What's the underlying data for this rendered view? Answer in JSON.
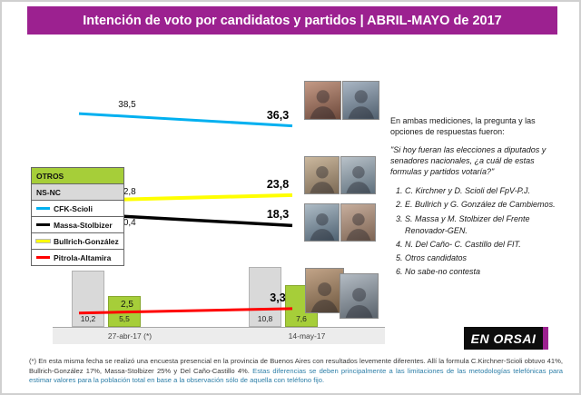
{
  "header": {
    "title": "Intención de voto por candidatos y partidos | ABRIL-MAYO de 2017"
  },
  "chart_data": {
    "type": "line+bar",
    "title": "Intención de voto por candidatos y partidos | ABRIL-MAYO de 2017",
    "categories": [
      "27-abr-17 (*)",
      "14-may-17"
    ],
    "line_series": [
      {
        "name": "CFK-Scioli",
        "color": "#00b0f0",
        "values": [
          38.5,
          36.3
        ],
        "labels": [
          "38,5",
          "36,3"
        ]
      },
      {
        "name": "Bullrich-González",
        "color": "#ffff00",
        "values": [
          22.8,
          23.8
        ],
        "labels": [
          "22,8",
          "23,8"
        ]
      },
      {
        "name": "Massa-Stolbizer",
        "color": "#000000",
        "values": [
          20.4,
          18.3
        ],
        "labels": [
          "20,4",
          "18,3"
        ]
      },
      {
        "name": "Pitrola-Altamira",
        "color": "#ff0000",
        "values": [
          2.5,
          3.3
        ],
        "labels": [
          "2,5",
          "3,3"
        ]
      }
    ],
    "bar_series": [
      {
        "name": "NS-NC",
        "color": "#d9d9d9",
        "values": [
          10.2,
          10.8
        ],
        "labels": [
          "10,2",
          "10,8"
        ]
      },
      {
        "name": "OTROS",
        "color": "#a6ce39",
        "values": [
          5.5,
          7.6
        ],
        "labels": [
          "5,5",
          "7,6"
        ]
      }
    ],
    "ylim": [
      0,
      45
    ],
    "grid": false,
    "legend_position": "left"
  },
  "legend": {
    "items": [
      {
        "label": "OTROS",
        "swatch": "#a6ce39",
        "type": "fill"
      },
      {
        "label": "NS-NC",
        "swatch": "#d9d9d9",
        "type": "fill"
      },
      {
        "label": "CFK-Scioli",
        "swatch": "#00b0f0",
        "type": "line"
      },
      {
        "label": "Massa-Stolbizer",
        "swatch": "#000000",
        "type": "line"
      },
      {
        "label": "Bullrich-González",
        "swatch": "#ffff00",
        "type": "line"
      },
      {
        "label": "Pitrola-Altamira",
        "swatch": "#ff0000",
        "type": "line"
      }
    ]
  },
  "panel": {
    "intro": "En ambas mediciones, la pregunta y las opciones de respuestas fueron:",
    "question": "\"Si hoy fueran las elecciones a diputados y senadores nacionales, ¿a cuál de estas formulas y partidos votaría?\"",
    "options": [
      "C. Kirchner y D. Scioli del FpV-P.J.",
      "E. Bullrich y G. González de Cambiemos.",
      "S. Massa y M. Stolbizer del Frente Renovador-GEN.",
      "N. Del Caño- C. Castillo del FIT.",
      "Otros candidatos",
      "No sabe-no contesta"
    ]
  },
  "logo": {
    "text": "EN ORSAI"
  },
  "footnote": {
    "plain": "(*) En esta misma fecha se realizó una encuesta presencial en la provincia de Buenos Aires con resultados levemente diferentes. Allí la formula C.Kirchner-Scioli obtuvo 41%, Bullrich-González 17%, Massa-Stolbizer 25% y Del Caño-Castillo 4%. ",
    "highlight": "Estas diferencias se deben principalmente a las limitaciones de las metodologías telefónicas para estimar valores para la población total en base a la observación sólo de aquella con teléfono fijo."
  },
  "colors": {
    "accent": "#9c2190",
    "highlight_text": "#2e7fa8"
  }
}
